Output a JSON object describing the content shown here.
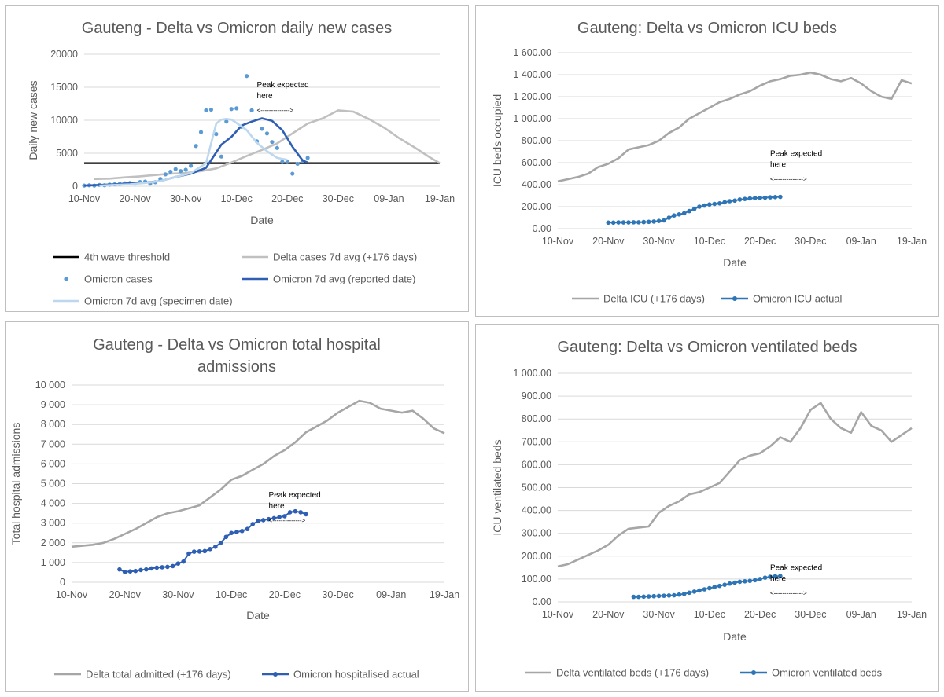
{
  "chart_data": [
    {
      "type": "line",
      "title": "Gauteng -  Delta vs Omicron daily new cases",
      "xlabel": "Date",
      "ylabel": "Daily new cases",
      "ylim": [
        0,
        20000
      ],
      "y_ticks": [
        "0",
        "5000",
        "10000",
        "15000",
        "20000"
      ],
      "y_tick_values": [
        0,
        5000,
        10000,
        15000,
        20000
      ],
      "x_ticks": [
        "10-Nov",
        "20-Nov",
        "30-Nov",
        "10-Dec",
        "20-Dec",
        "30-Dec",
        "09-Jan",
        "19-Jan"
      ],
      "x_range": [
        0,
        70
      ],
      "annotation": {
        "line1": "Peak expected",
        "line2": "here",
        "arrow": "<-------------->",
        "x": 34,
        "y": 15000
      },
      "threshold": {
        "name": "4th wave threshold",
        "value": 3500
      },
      "series": [
        {
          "name": "Delta cases 7d avg (+176 days)",
          "style": "line",
          "color": "#c0c0c0",
          "x": [
            2,
            5,
            8,
            11,
            14,
            17,
            20,
            23,
            26,
            29,
            32,
            35,
            38,
            41,
            44,
            47,
            50,
            53,
            56,
            59,
            62,
            65,
            68,
            70
          ],
          "y": [
            1100,
            1150,
            1350,
            1500,
            1700,
            1900,
            2000,
            2300,
            2700,
            3600,
            4600,
            5500,
            6500,
            8000,
            9500,
            10300,
            11500,
            11300,
            10200,
            8900,
            7300,
            5900,
            4400,
            3500
          ]
        },
        {
          "name": "Omicron cases",
          "style": "scatter",
          "color": "#5b9bd5",
          "x": [
            0,
            1,
            2,
            3,
            4,
            5,
            6,
            7,
            8,
            9,
            10,
            11,
            12,
            13,
            14,
            15,
            16,
            17,
            18,
            19,
            20,
            21,
            22,
            23,
            24,
            25,
            26,
            27,
            28,
            29,
            30,
            31,
            32,
            33,
            34,
            35,
            36,
            37,
            38,
            39,
            40,
            41,
            42,
            43,
            44
          ],
          "y": [
            100,
            150,
            100,
            200,
            150,
            250,
            300,
            350,
            450,
            500,
            400,
            650,
            700,
            400,
            600,
            1100,
            1800,
            2200,
            2600,
            2300,
            2500,
            3100,
            6100,
            8200,
            11500,
            11600,
            7900,
            4500,
            9800,
            11700,
            11800,
            9000,
            16700,
            11500,
            6800,
            8700,
            8000,
            6700,
            5800,
            3700,
            3700,
            1900,
            3400,
            3800,
            4300
          ]
        },
        {
          "name": "Omicron 7d avg (reported date)",
          "style": "line",
          "color": "#2e5fb3",
          "x": [
            0,
            3,
            6,
            9,
            12,
            15,
            18,
            21,
            24,
            27,
            29,
            31,
            33,
            35,
            37,
            39,
            41,
            43,
            44
          ],
          "y": [
            100,
            200,
            300,
            450,
            550,
            800,
            1400,
            1900,
            2800,
            6300,
            7500,
            9200,
            9800,
            10300,
            9900,
            8500,
            6000,
            3900,
            3600
          ]
        },
        {
          "name": "Omicron 7d avg (specimen date)",
          "style": "line",
          "color": "#bdd7ee",
          "x": [
            3,
            6,
            9,
            12,
            15,
            18,
            21,
            24,
            25,
            26,
            27,
            28,
            29,
            30,
            32,
            34,
            36,
            38,
            40
          ],
          "y": [
            100,
            200,
            300,
            500,
            800,
            1400,
            2000,
            3500,
            6500,
            9500,
            10100,
            10200,
            10100,
            9600,
            8500,
            6600,
            5300,
            4300,
            4000
          ]
        }
      ],
      "legend": [
        "4th wave threshold",
        "Delta cases 7d avg (+176 days)",
        "Omicron cases",
        "Omicron 7d avg (reported date)",
        "Omicron 7d avg (specimen date)"
      ]
    },
    {
      "type": "line",
      "title": "Gauteng: Delta vs Omicron ICU beds",
      "xlabel": "Date",
      "ylabel": "ICU beds occupied",
      "ylim": [
        0,
        1600
      ],
      "y_ticks": [
        "0.00",
        "200.00",
        "400.00",
        "600.00",
        "800.00",
        "1 000.00",
        "1 200.00",
        "1 400.00",
        "1 600.00"
      ],
      "y_tick_values": [
        0,
        200,
        400,
        600,
        800,
        1000,
        1200,
        1400,
        1600
      ],
      "x_ticks": [
        "10-Nov",
        "20-Nov",
        "30-Nov",
        "10-Dec",
        "20-Dec",
        "30-Dec",
        "09-Jan",
        "19-Jan"
      ],
      "x_range": [
        0,
        70
      ],
      "annotation": {
        "line1": "Peak expected",
        "line2": "here",
        "arrow": "<-------------->",
        "x": 42,
        "y": 660
      },
      "series": [
        {
          "name": "Delta ICU (+176 days)",
          "style": "line",
          "color": "#a6a6a6",
          "x": [
            0,
            2,
            4,
            6,
            8,
            10,
            12,
            14,
            16,
            18,
            20,
            22,
            24,
            26,
            28,
            30,
            32,
            34,
            36,
            38,
            40,
            42,
            44,
            46,
            48,
            50,
            52,
            54,
            56,
            58,
            60,
            62,
            64,
            66,
            68,
            70
          ],
          "y": [
            430,
            450,
            470,
            500,
            560,
            590,
            640,
            720,
            740,
            760,
            800,
            870,
            920,
            1000,
            1050,
            1100,
            1150,
            1180,
            1220,
            1250,
            1300,
            1340,
            1360,
            1390,
            1400,
            1420,
            1400,
            1360,
            1340,
            1370,
            1320,
            1250,
            1200,
            1180,
            1350,
            1320
          ]
        },
        {
          "name": "Omicron ICU actual",
          "style": "line-marker",
          "color": "#2e75b6",
          "x": [
            10,
            11,
            12,
            13,
            14,
            15,
            16,
            17,
            18,
            19,
            20,
            21,
            22,
            23,
            24,
            25,
            26,
            27,
            28,
            29,
            30,
            31,
            32,
            33,
            34,
            35,
            36,
            37,
            38,
            39,
            40,
            41,
            42,
            43,
            44
          ],
          "y": [
            55,
            55,
            57,
            57,
            57,
            58,
            58,
            60,
            62,
            65,
            70,
            75,
            100,
            120,
            130,
            140,
            160,
            180,
            200,
            210,
            220,
            225,
            230,
            240,
            250,
            255,
            265,
            270,
            275,
            278,
            280,
            282,
            285,
            287,
            289
          ]
        }
      ],
      "legend": [
        "Delta ICU (+176 days)",
        "Omicron ICU actual"
      ]
    },
    {
      "type": "line",
      "title_line1": "Gauteng - Delta vs Omicron total hospital",
      "title_line2": "admissions",
      "xlabel": "Date",
      "ylabel": "Total hospital admissions",
      "ylim": [
        0,
        10000
      ],
      "y_ticks": [
        "0",
        "1 000",
        "2 000",
        "3 000",
        "4 000",
        "5 000",
        "6 000",
        "7 000",
        "8 000",
        "9 000",
        "10 000"
      ],
      "y_tick_values": [
        0,
        1000,
        2000,
        3000,
        4000,
        5000,
        6000,
        7000,
        8000,
        9000,
        10000
      ],
      "x_ticks": [
        "10-Nov",
        "20-Nov",
        "30-Nov",
        "10-Dec",
        "20-Dec",
        "30-Dec",
        "09-Jan",
        "19-Jan"
      ],
      "x_range": [
        0,
        70
      ],
      "annotation": {
        "line1": "Peak expected",
        "line2": "here",
        "arrow": "<-------------->",
        "x": 37,
        "y": 4300
      },
      "series": [
        {
          "name": "Delta total admitted (+176 days)",
          "style": "line",
          "color": "#a6a6a6",
          "x": [
            0,
            2,
            4,
            6,
            8,
            10,
            12,
            14,
            16,
            18,
            20,
            22,
            24,
            26,
            28,
            30,
            32,
            34,
            36,
            38,
            40,
            42,
            44,
            46,
            48,
            50,
            52,
            54,
            56,
            58,
            60,
            62,
            64,
            66,
            68,
            70
          ],
          "y": [
            1800,
            1850,
            1900,
            2000,
            2200,
            2450,
            2700,
            3000,
            3300,
            3500,
            3600,
            3750,
            3900,
            4300,
            4700,
            5200,
            5400,
            5700,
            6000,
            6400,
            6700,
            7100,
            7600,
            7900,
            8200,
            8600,
            8900,
            9200,
            9100,
            8800,
            8700,
            8600,
            8700,
            8300,
            7800,
            7550
          ]
        },
        {
          "name": "Omicron hospitalised actual",
          "style": "line-marker",
          "color": "#2e5fb3",
          "x": [
            9,
            10,
            11,
            12,
            13,
            14,
            15,
            16,
            17,
            18,
            19,
            20,
            21,
            22,
            23,
            24,
            25,
            26,
            27,
            28,
            29,
            30,
            31,
            32,
            33,
            34,
            35,
            36,
            37,
            38,
            39,
            40,
            41,
            42,
            43,
            44
          ],
          "y": [
            650,
            520,
            550,
            570,
            620,
            650,
            700,
            740,
            760,
            780,
            820,
            950,
            1050,
            1450,
            1550,
            1560,
            1580,
            1680,
            1800,
            2000,
            2300,
            2500,
            2550,
            2600,
            2700,
            2950,
            3100,
            3150,
            3200,
            3250,
            3300,
            3350,
            3550,
            3600,
            3550,
            3450
          ]
        }
      ],
      "legend": [
        "Delta total admitted (+176 days)",
        "Omicron hospitalised actual"
      ]
    },
    {
      "type": "line",
      "title": "Gauteng: Delta vs Omicron ventilated beds",
      "xlabel": "Date",
      "ylabel": "ICU ventilated beds",
      "ylim": [
        0,
        1000
      ],
      "y_ticks": [
        "0.00",
        "100.00",
        "200.00",
        "300.00",
        "400.00",
        "500.00",
        "600.00",
        "700.00",
        "800.00",
        "900.00",
        "1 000.00"
      ],
      "y_tick_values": [
        0,
        100,
        200,
        300,
        400,
        500,
        600,
        700,
        800,
        900,
        1000
      ],
      "x_ticks": [
        "10-Nov",
        "20-Nov",
        "30-Nov",
        "10-Dec",
        "20-Dec",
        "30-Dec",
        "09-Jan",
        "19-Jan"
      ],
      "x_range": [
        0,
        70
      ],
      "annotation": {
        "line1": "Peak expected",
        "line2": "here",
        "arrow": "<-------------->",
        "x": 42,
        "y": 140
      },
      "series": [
        {
          "name": "Delta ventilated beds (+176 days)",
          "style": "line",
          "color": "#a6a6a6",
          "x": [
            0,
            2,
            4,
            6,
            8,
            10,
            12,
            14,
            16,
            18,
            20,
            22,
            24,
            26,
            28,
            30,
            32,
            34,
            36,
            38,
            40,
            42,
            44,
            46,
            48,
            50,
            52,
            54,
            56,
            58,
            60,
            62,
            64,
            66,
            68,
            70
          ],
          "y": [
            155,
            165,
            185,
            205,
            225,
            250,
            290,
            320,
            325,
            330,
            390,
            420,
            440,
            470,
            480,
            500,
            520,
            570,
            620,
            640,
            650,
            680,
            720,
            700,
            760,
            840,
            870,
            800,
            760,
            740,
            830,
            770,
            750,
            700,
            730,
            760
          ]
        },
        {
          "name": "Omicron ventilated beds",
          "style": "line-marker",
          "color": "#2e75b6",
          "x": [
            15,
            16,
            17,
            18,
            19,
            20,
            21,
            22,
            23,
            24,
            25,
            26,
            27,
            28,
            29,
            30,
            31,
            32,
            33,
            34,
            35,
            36,
            37,
            38,
            39,
            40,
            41,
            42,
            43,
            44
          ],
          "y": [
            22,
            22,
            23,
            24,
            25,
            26,
            27,
            28,
            29,
            32,
            35,
            40,
            45,
            50,
            55,
            60,
            65,
            70,
            75,
            80,
            84,
            88,
            90,
            92,
            95,
            100,
            106,
            110,
            112,
            113
          ]
        }
      ],
      "legend": [
        "Delta ventilated beds (+176 days)",
        "Omicron ventilated beds"
      ]
    }
  ]
}
